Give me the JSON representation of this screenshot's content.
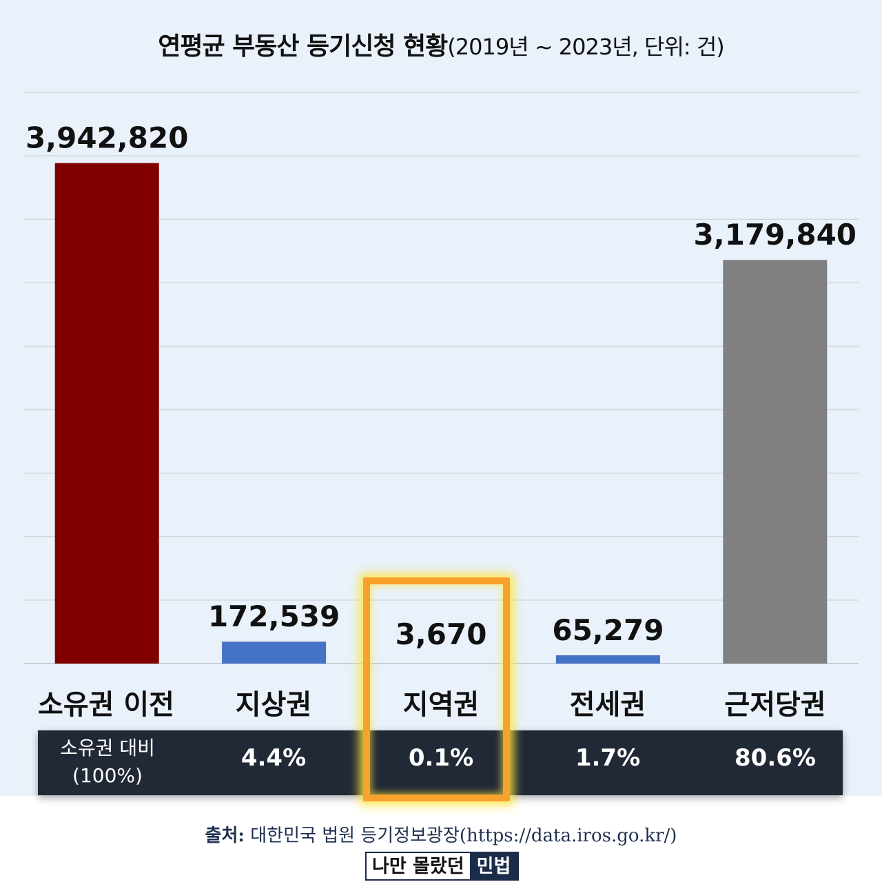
{
  "title": "연평균 부동산 등기신청 현황",
  "title_suffix": "(2019년 ~ 2023년, 단위: 건)",
  "colors": {
    "background": "#e9f1fa",
    "ownership": "#800000",
    "small": "#4472c4",
    "mortgage": "#808080",
    "highlight": "#f8a12c",
    "table": "#212936"
  },
  "chart_data": {
    "type": "bar",
    "categories": [
      "소유권 이전",
      "지상권",
      "지역권",
      "전세권",
      "근저당권"
    ],
    "values": [
      3942820,
      172539,
      3670,
      65279,
      3179840
    ],
    "value_labels": [
      "3,942,820",
      "172,539",
      "3,670",
      "65,279",
      "3,179,840"
    ],
    "ylim": [
      0,
      4500000
    ],
    "grid": true,
    "highlighted_category": "지역권"
  },
  "ratio_row": {
    "header_line1": "소유권 대비",
    "header_line2": "(100%)",
    "values": [
      "4.4%",
      "0.1%",
      "1.7%",
      "80.6%"
    ]
  },
  "source": {
    "label": "출처:",
    "text": "대한민국 법원 등기정보광장(https://data.iros.go.kr/)"
  },
  "brand": {
    "part1": "나만 몰랐던",
    "part2": "민법"
  }
}
